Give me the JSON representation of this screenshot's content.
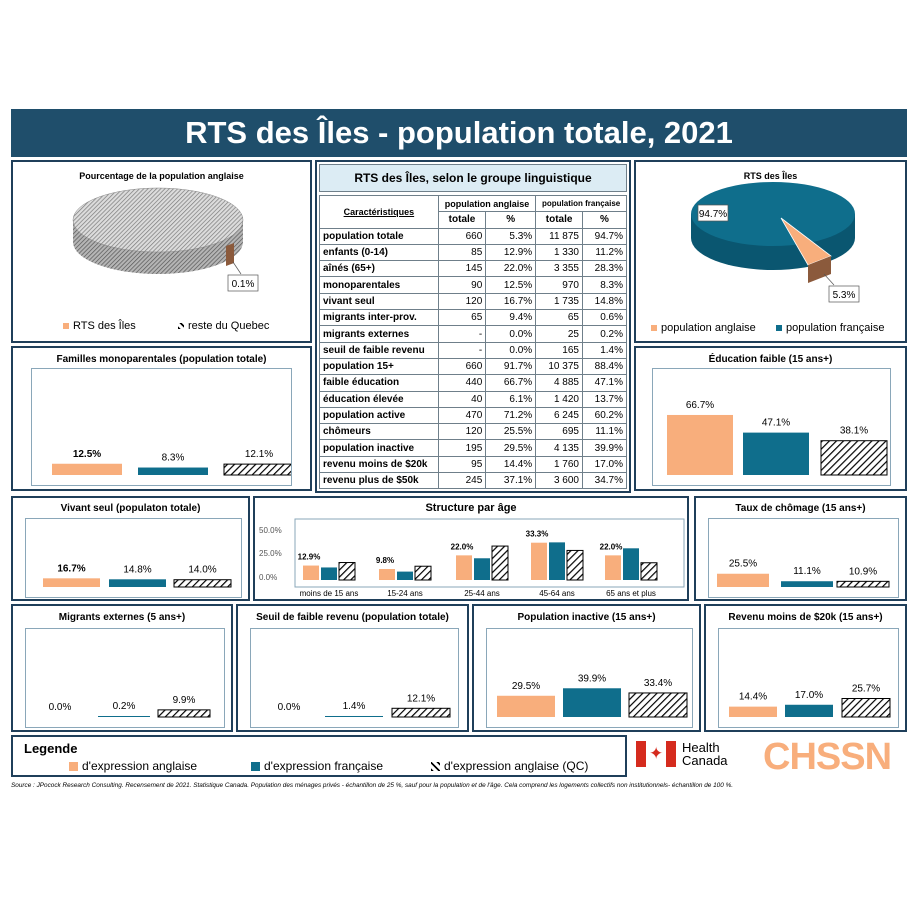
{
  "title": "RTS des Îles - population totale, 2021",
  "colors": {
    "anglo": "#f8ae7c",
    "franco": "#0f6e8c",
    "frame": "#1f3f5a",
    "title_bg": "#1f4e6b"
  },
  "pie_left": {
    "title": "Pourcentage de la population  anglaise",
    "label": "0.1%",
    "legend": [
      "RTS des Îles",
      "reste du Quebec"
    ]
  },
  "pie_right": {
    "title": "RTS des Îles",
    "label_big": "94.7%",
    "label_small": "5.3%",
    "legend": [
      "population anglaise",
      "population française"
    ]
  },
  "table": {
    "title": "RTS des Îles, selon le groupe linguistique",
    "header_char": "Caractéristiques",
    "header_anglo": "population anglaise",
    "header_franco": "population française",
    "sub_total": "totale",
    "sub_pct": "%",
    "rows": [
      [
        "population totale",
        "660",
        "5.3%",
        "11 875",
        "94.7%"
      ],
      [
        "enfants (0-14)",
        "85",
        "12.9%",
        "1 330",
        "11.2%"
      ],
      [
        "aînés (65+)",
        "145",
        "22.0%",
        "3 355",
        "28.3%"
      ],
      [
        "monoparentales",
        "90",
        "12.5%",
        "970",
        "8.3%"
      ],
      [
        "vivant seul",
        "120",
        "16.7%",
        "1 735",
        "14.8%"
      ],
      [
        "migrants inter-prov.",
        "65",
        "9.4%",
        "65",
        "0.6%"
      ],
      [
        "migrants externes",
        "-",
        "0.0%",
        "25",
        "0.2%"
      ],
      [
        "seuil de faible revenu",
        "-",
        "0.0%",
        "165",
        "1.4%"
      ],
      [
        "population 15+",
        "660",
        "91.7%",
        "10 375",
        "88.4%"
      ],
      [
        "faible éducation",
        "440",
        "66.7%",
        "4 885",
        "47.1%"
      ],
      [
        "éducation élevée",
        "40",
        "6.1%",
        "1 420",
        "13.7%"
      ],
      [
        "population active",
        "470",
        "71.2%",
        "6 245",
        "60.2%"
      ],
      [
        "chômeurs",
        "120",
        "25.5%",
        "695",
        "11.1%"
      ],
      [
        "population inactive",
        "195",
        "29.5%",
        "4 135",
        "39.9%"
      ],
      [
        "revenu moins de $20k",
        "95",
        "14.4%",
        "1 760",
        "17.0%"
      ],
      [
        "revenu plus de $50k",
        "245",
        "37.1%",
        "3 600",
        "34.7%"
      ]
    ]
  },
  "chart_data": [
    {
      "id": "monoparentales",
      "type": "bar",
      "title": "Familles monoparentales (population  totale)",
      "values": [
        12.5,
        8.3,
        12.1
      ],
      "labels": [
        "12.5%",
        "8.3%",
        "12.1%"
      ],
      "ylim": [
        0,
        100
      ]
    },
    {
      "id": "education",
      "type": "bar",
      "title": "Éducation faible (15 ans+)",
      "values": [
        66.7,
        47.1,
        38.1
      ],
      "labels": [
        "66.7%",
        "47.1%",
        "38.1%"
      ],
      "ylim": [
        0,
        100
      ]
    },
    {
      "id": "seul",
      "type": "bar",
      "title": "Vivant seul (populaton totale)",
      "values": [
        16.7,
        14.8,
        14.0
      ],
      "labels": [
        "16.7%",
        "14.8%",
        "14.0%"
      ],
      "ylim": [
        0,
        100
      ]
    },
    {
      "id": "chomage",
      "type": "bar",
      "title": "Taux de chômage (15 ans+)",
      "values": [
        25.5,
        11.1,
        10.9
      ],
      "labels": [
        "25.5%",
        "11.1%",
        "10.9%"
      ],
      "ylim": [
        0,
        100
      ]
    },
    {
      "id": "migrants",
      "type": "bar",
      "title": "Migrants externes (5 ans+)",
      "values": [
        0.0,
        0.2,
        9.9
      ],
      "labels": [
        "0.0%",
        "0.2%",
        "9.9%"
      ],
      "ylim": [
        0,
        100
      ]
    },
    {
      "id": "faiblerev",
      "type": "bar",
      "title": "Seuil de faible revenu (population totale)",
      "values": [
        0.0,
        1.4,
        12.1
      ],
      "labels": [
        "0.0%",
        "1.4%",
        "12.1%"
      ],
      "ylim": [
        0,
        100
      ]
    },
    {
      "id": "inactive",
      "type": "bar",
      "title": "Population inactive (15 ans+)",
      "values": [
        29.5,
        39.9,
        33.4
      ],
      "labels": [
        "29.5%",
        "39.9%",
        "33.4%"
      ],
      "ylim": [
        0,
        100
      ]
    },
    {
      "id": "rev20k",
      "type": "bar",
      "title": "Revenu moins de $20k (15 ans+)",
      "values": [
        14.4,
        17.0,
        25.7
      ],
      "labels": [
        "14.4%",
        "17.0%",
        "25.7%"
      ],
      "ylim": [
        0,
        100
      ]
    },
    {
      "id": "age",
      "type": "bar",
      "title": "Structure par âge",
      "categories": [
        "moins de 15 ans",
        "15-24 ans",
        "25-44 ans",
        "45-64 ans",
        "65 ans et plus"
      ],
      "yticks": [
        "50.0%",
        "25.0%",
        "0.0%"
      ],
      "ylim": [
        0,
        50
      ],
      "series": [
        {
          "values": [
            12.9,
            9.8,
            22.0,
            33.3,
            22.0
          ],
          "labels": [
            "12.9%",
            "9.8%",
            "22.0%",
            "33.3%",
            "22.0%"
          ]
        },
        {
          "values": [
            11.2,
            7.5,
            19.4,
            33.6,
            28.3
          ]
        },
        {
          "values": [
            15.6,
            12.3,
            30.3,
            26.4,
            15.4
          ]
        }
      ]
    }
  ],
  "pies": [
    {
      "id": "pie-left",
      "values": [
        0.1,
        99.9
      ]
    },
    {
      "id": "pie-right",
      "values": [
        5.3,
        94.7
      ]
    }
  ],
  "legend": {
    "title": "Legende",
    "items": [
      "d'expression anglaise",
      "d'expression française",
      "d'expression anglaise (QC)"
    ]
  },
  "logos": {
    "health_canada": "Health\nCanada",
    "chssn": "CHSSN"
  },
  "source": "Source : JPocock Research Consulting. Recensement de 2021. Statistique Canada. Population des ménages privés - échantillon de 25 %, sauf pour la population et de l'âge. Cela comprend les logements collectifs non institutionnels- échantillon de 100 %."
}
